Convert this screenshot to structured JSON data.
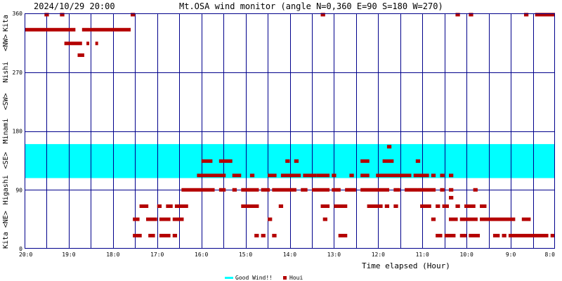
{
  "chart_data": {
    "type": "scatter",
    "datetime": "2024/10/29 20:00",
    "title": "Mt.OSA wind monitor (angle N=0,360 E=90 S=180 W=270)",
    "xlabel": "Time elapsed (Hour)",
    "x_tick_labels": [
      "20:0",
      "19:0",
      "18:0",
      "17:0",
      "16:0",
      "15:0",
      "14:0",
      "13:0",
      "12:0",
      "11:0",
      "10:0",
      "9:0",
      "8:0"
    ],
    "xlim": [
      0,
      12
    ],
    "ylim": [
      0,
      360
    ],
    "y_ticks": [
      0,
      90,
      180,
      270,
      360
    ],
    "y_tick_labels": [
      "0",
      "90",
      "180",
      "270",
      "360"
    ],
    "y_direction_labels": [
      "Kita",
      "<NE>",
      "Higashi",
      "<SE>",
      "Minami",
      "<SW>",
      "Nishi",
      "<NW>",
      "Kita"
    ],
    "grid": true,
    "good_wind_band": [
      108,
      160
    ],
    "legend": {
      "position": "bottom",
      "items": [
        {
          "label": "Good Wind!!",
          "color": "#00ffff"
        },
        {
          "label": "Houi",
          "color": "#b40000"
        }
      ]
    },
    "colors": {
      "frame": "#00008b",
      "band": "#00ffff",
      "points": "#b40000",
      "text": "#000000"
    },
    "series": [
      {
        "name": "Houi",
        "segments": [
          [
            0.45,
            0.55,
            358
          ],
          [
            0.8,
            0.9,
            358
          ],
          [
            2.4,
            2.5,
            358
          ],
          [
            6.7,
            6.8,
            358
          ],
          [
            9.75,
            9.85,
            358
          ],
          [
            10.05,
            10.15,
            358
          ],
          [
            11.3,
            11.4,
            358
          ],
          [
            11.55,
            12.0,
            358
          ],
          [
            0.0,
            1.15,
            335
          ],
          [
            1.3,
            2.4,
            335
          ],
          [
            0.9,
            1.3,
            314
          ],
          [
            1.4,
            1.45,
            314
          ],
          [
            1.6,
            1.65,
            314
          ],
          [
            1.2,
            1.35,
            296
          ],
          [
            8.2,
            8.3,
            156
          ],
          [
            4.0,
            4.25,
            134
          ],
          [
            4.4,
            4.7,
            134
          ],
          [
            5.9,
            6.0,
            134
          ],
          [
            6.1,
            6.2,
            134
          ],
          [
            7.6,
            7.8,
            134
          ],
          [
            8.1,
            8.35,
            134
          ],
          [
            8.85,
            8.95,
            134
          ],
          [
            3.9,
            4.55,
            112
          ],
          [
            4.7,
            4.9,
            112
          ],
          [
            5.1,
            5.2,
            112
          ],
          [
            5.5,
            5.7,
            112
          ],
          [
            5.8,
            6.25,
            112
          ],
          [
            6.3,
            6.6,
            112
          ],
          [
            6.6,
            6.9,
            112
          ],
          [
            6.95,
            7.05,
            112
          ],
          [
            7.35,
            7.45,
            112
          ],
          [
            7.6,
            7.8,
            112
          ],
          [
            7.95,
            8.75,
            112
          ],
          [
            8.8,
            9.15,
            112
          ],
          [
            9.2,
            9.3,
            112
          ],
          [
            9.4,
            9.5,
            112
          ],
          [
            9.6,
            9.7,
            112
          ],
          [
            3.55,
            4.3,
            90
          ],
          [
            4.4,
            4.55,
            90
          ],
          [
            4.7,
            4.8,
            90
          ],
          [
            4.9,
            5.3,
            90
          ],
          [
            5.35,
            5.55,
            90
          ],
          [
            5.6,
            6.0,
            90
          ],
          [
            6.0,
            6.15,
            90
          ],
          [
            6.25,
            6.4,
            90
          ],
          [
            6.5,
            6.9,
            90
          ],
          [
            6.95,
            7.15,
            90
          ],
          [
            7.25,
            7.5,
            90
          ],
          [
            7.6,
            8.25,
            90
          ],
          [
            8.35,
            8.5,
            90
          ],
          [
            8.6,
            8.9,
            90
          ],
          [
            8.9,
            9.3,
            90
          ],
          [
            9.4,
            9.5,
            90
          ],
          [
            9.6,
            9.7,
            90
          ],
          [
            10.15,
            10.25,
            90
          ],
          [
            9.6,
            9.7,
            78
          ],
          [
            2.6,
            2.8,
            65
          ],
          [
            3.0,
            3.1,
            65
          ],
          [
            3.2,
            3.35,
            65
          ],
          [
            3.4,
            3.7,
            65
          ],
          [
            4.9,
            5.3,
            65
          ],
          [
            5.75,
            5.85,
            65
          ],
          [
            6.7,
            6.9,
            65
          ],
          [
            7.0,
            7.3,
            65
          ],
          [
            7.75,
            8.1,
            65
          ],
          [
            8.15,
            8.25,
            65
          ],
          [
            8.35,
            8.45,
            65
          ],
          [
            8.95,
            9.2,
            65
          ],
          [
            9.3,
            9.4,
            65
          ],
          [
            9.45,
            9.6,
            65
          ],
          [
            9.75,
            9.85,
            65
          ],
          [
            9.95,
            10.2,
            65
          ],
          [
            10.3,
            10.45,
            65
          ],
          [
            2.45,
            2.6,
            45
          ],
          [
            2.75,
            3.0,
            45
          ],
          [
            3.05,
            3.3,
            45
          ],
          [
            3.35,
            3.6,
            45
          ],
          [
            5.5,
            5.6,
            45
          ],
          [
            6.75,
            6.85,
            45
          ],
          [
            9.2,
            9.3,
            45
          ],
          [
            9.6,
            9.8,
            45
          ],
          [
            9.85,
            10.25,
            45
          ],
          [
            10.3,
            11.1,
            45
          ],
          [
            11.25,
            11.45,
            45
          ],
          [
            2.45,
            2.65,
            20
          ],
          [
            2.8,
            2.95,
            20
          ],
          [
            3.05,
            3.3,
            20
          ],
          [
            3.35,
            3.45,
            20
          ],
          [
            5.2,
            5.3,
            20
          ],
          [
            5.35,
            5.45,
            20
          ],
          [
            5.6,
            5.7,
            20
          ],
          [
            7.1,
            7.3,
            20
          ],
          [
            9.3,
            9.45,
            20
          ],
          [
            9.5,
            9.75,
            20
          ],
          [
            9.85,
            10.0,
            20
          ],
          [
            10.05,
            10.3,
            20
          ],
          [
            10.6,
            10.75,
            20
          ],
          [
            10.8,
            10.9,
            20
          ],
          [
            10.95,
            11.85,
            20
          ],
          [
            11.9,
            12.0,
            20
          ]
        ]
      }
    ]
  }
}
